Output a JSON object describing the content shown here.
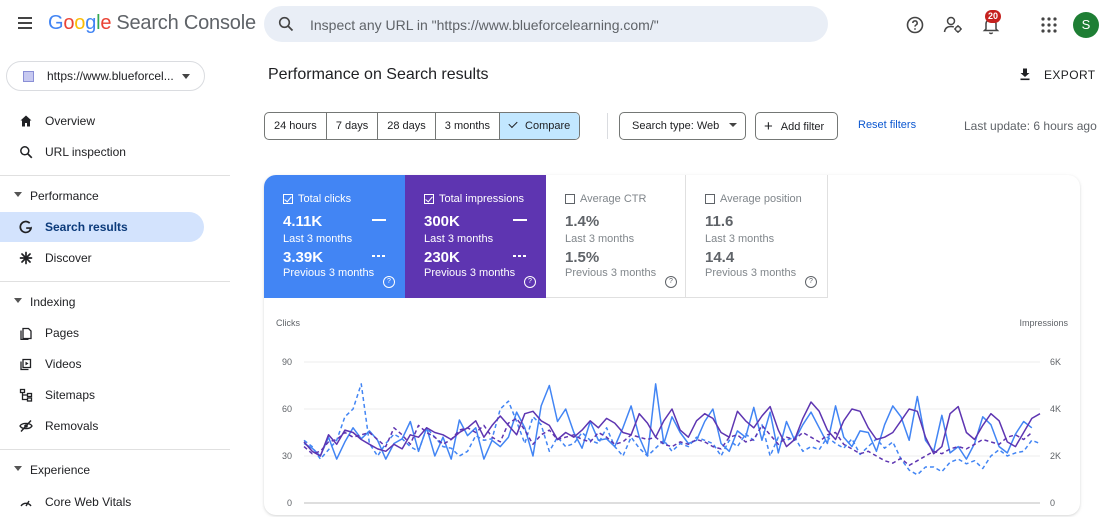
{
  "header": {
    "logo": {
      "letters": [
        "G",
        "o",
        "o",
        "g",
        "l",
        "e"
      ],
      "product": "Search Console"
    },
    "search_placeholder": "Inspect any URL in \"https://www.blueforcelearning.com/\"",
    "notifications_count": "20",
    "avatar_initial": "S"
  },
  "sidebar": {
    "property": "https://www.blueforcel...",
    "items": [
      {
        "label": "Overview",
        "icon": "home-icon"
      },
      {
        "label": "URL inspection",
        "icon": "search-icon"
      }
    ],
    "sections": [
      {
        "label": "Performance",
        "items": [
          {
            "label": "Search results",
            "icon": "google-g-icon",
            "active": true
          },
          {
            "label": "Discover",
            "icon": "asterisk-icon"
          }
        ]
      },
      {
        "label": "Indexing",
        "items": [
          {
            "label": "Pages",
            "icon": "pages-icon"
          },
          {
            "label": "Videos",
            "icon": "video-icon"
          },
          {
            "label": "Sitemaps",
            "icon": "sitemap-icon"
          },
          {
            "label": "Removals",
            "icon": "removal-icon"
          }
        ]
      },
      {
        "label": "Experience",
        "items": [
          {
            "label": "Core Web Vitals",
            "icon": "vitals-icon"
          }
        ]
      }
    ]
  },
  "main": {
    "title": "Performance on Search results",
    "export_label": "EXPORT",
    "ranges": [
      "24 hours",
      "7 days",
      "28 days",
      "3 months",
      "Compare"
    ],
    "selected_range": "Compare",
    "search_type": "Search type: Web",
    "add_filter": "Add filter",
    "reset_filters": "Reset filters",
    "last_update": "Last update: 6 hours ago"
  },
  "metrics": [
    {
      "label": "Total clicks",
      "checked": true,
      "value": "4.11K",
      "period": "Last 3 months",
      "prev_value": "3.39K",
      "prev_period": "Previous 3 months",
      "color": "#4285f4"
    },
    {
      "label": "Total impressions",
      "checked": true,
      "value": "300K",
      "period": "Last 3 months",
      "prev_value": "230K",
      "prev_period": "Previous 3 months",
      "color": "#5e35b1"
    },
    {
      "label": "Average CTR",
      "checked": false,
      "value": "1.4%",
      "period": "Last 3 months",
      "prev_value": "1.5%",
      "prev_period": "Previous 3 months"
    },
    {
      "label": "Average position",
      "checked": false,
      "value": "11.6",
      "period": "Last 3 months",
      "prev_value": "14.4",
      "prev_period": "Previous 3 months"
    }
  ],
  "chart_data": {
    "type": "line",
    "ylabel_left": "Clicks",
    "ylabel_right": "Impressions",
    "yticks_left": [
      "0",
      "30",
      "60",
      "90"
    ],
    "yticks_right": [
      "0",
      "2K",
      "4K",
      "6K"
    ],
    "ylim_left": [
      0,
      90
    ],
    "ylim_right": [
      0,
      6000
    ],
    "xticks": [
      "15",
      "30",
      "45",
      "60",
      "75",
      "90"
    ],
    "xlim": [
      1,
      91
    ],
    "grid": true,
    "series": [
      {
        "name": "Total clicks",
        "axis": "left",
        "style": "solid",
        "color": "#4285f4",
        "values": [
          38,
          35,
          30,
          42,
          28,
          39,
          48,
          41,
          46,
          40,
          28,
          38,
          41,
          52,
          33,
          48,
          30,
          42,
          28,
          53,
          43,
          48,
          28,
          40,
          36,
          42,
          58,
          48,
          30,
          62,
          75,
          52,
          60,
          45,
          35,
          52,
          40,
          41,
          36,
          48,
          62,
          42,
          30,
          76,
          38,
          55,
          45,
          38,
          40,
          52,
          60,
          38,
          33,
          46,
          42,
          61,
          40,
          58,
          32,
          52,
          40,
          50,
          58,
          48,
          38,
          62,
          42,
          36,
          46,
          45,
          33,
          50,
          62,
          55,
          40,
          68,
          40,
          33,
          56,
          32,
          36,
          28,
          38,
          55,
          50,
          36,
          32,
          44,
          52,
          48
        ]
      },
      {
        "name": "Total clicks",
        "axis": "left",
        "style": "dashed",
        "color": "#4285f4",
        "values": [
          40,
          36,
          28,
          34,
          40,
          55,
          60,
          76,
          38,
          30,
          38,
          44,
          41,
          36,
          33,
          48,
          42,
          36,
          35,
          30,
          33,
          43,
          40,
          41,
          60,
          65,
          52,
          38,
          55,
          50,
          33,
          42,
          36,
          38,
          45,
          40,
          38,
          48,
          36,
          30,
          42,
          35,
          30,
          35,
          40,
          33,
          38,
          36,
          42,
          40,
          38,
          30,
          40,
          36,
          44,
          40,
          50,
          30,
          42,
          40,
          42,
          33,
          36,
          34,
          42,
          38,
          35,
          41,
          31,
          36,
          41,
          35,
          39,
          28,
          21,
          18,
          23,
          23,
          20,
          26,
          28,
          25,
          27,
          22,
          30,
          34,
          30,
          32,
          33,
          40,
          38
        ]
      },
      {
        "name": "Total impressions",
        "axis": "right",
        "style": "solid",
        "color": "#5e35b1",
        "values": [
          2600,
          2200,
          2000,
          2900,
          2500,
          3100,
          3000,
          2700,
          2500,
          2300,
          2200,
          2500,
          2300,
          2900,
          2800,
          3200,
          3000,
          2900,
          2700,
          3000,
          3200,
          3500,
          2800,
          3300,
          3700,
          3300,
          2900,
          3800,
          3900,
          3500,
          3300,
          2700,
          3000,
          2800,
          3100,
          3500,
          3200,
          3600,
          3400,
          3000,
          2900,
          3800,
          3400,
          2800,
          3500,
          4000,
          3100,
          2800,
          3500,
          3800,
          3600,
          3000,
          2800,
          3900,
          3500,
          3200,
          3700,
          4100,
          3100,
          2400,
          2700,
          3600,
          4300,
          3900,
          3100,
          2700,
          3500,
          4000,
          3900,
          3200,
          2700,
          2800,
          3000,
          3500,
          4000,
          3900,
          2800,
          2100,
          2400,
          3800,
          4100,
          3000,
          2700,
          3300,
          3800,
          3500,
          2600,
          2400,
          3000,
          3600,
          3800
        ]
      },
      {
        "name": "Total impressions",
        "axis": "right",
        "style": "dashed",
        "color": "#5e35b1",
        "values": [
          2400,
          2100,
          2200,
          2600,
          2700,
          3000,
          2800,
          2900,
          3000,
          2700,
          2400,
          3200,
          2900,
          2500,
          3300,
          3000,
          2800,
          2500,
          2700,
          3100,
          3200,
          3000,
          3300,
          2800,
          2600,
          3400,
          3600,
          3100,
          2500,
          2900,
          3100,
          2700,
          2800,
          2900,
          2700,
          2600,
          3000,
          2800,
          2500,
          2600,
          2900,
          2800,
          2700,
          2800,
          2500,
          2400,
          2600,
          2500,
          2700,
          2600,
          2400,
          2300,
          2800,
          2900,
          2600,
          2700,
          3300,
          2900,
          2500,
          2800,
          2700,
          3000,
          2800,
          2600,
          2900,
          3000,
          2500,
          2300,
          2100,
          2200,
          2000,
          1800,
          1700,
          1900,
          1600,
          1800,
          2000,
          2200,
          2100,
          2300,
          2400,
          2300,
          2500,
          2700,
          2600,
          2500,
          2800,
          2900,
          2700,
          3000
        ]
      }
    ]
  }
}
